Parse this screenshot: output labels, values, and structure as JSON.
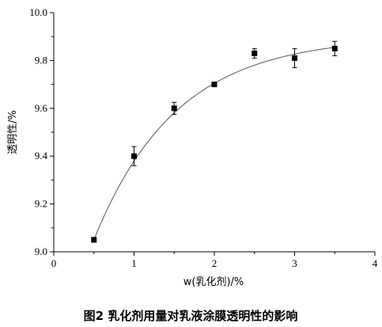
{
  "chart_data": {
    "type": "scatter",
    "caption": "图2   乳化剂用量对乳液涂膜透明性的影响",
    "xlabel": "w(乳化剂)/%",
    "ylabel": "透明性/%",
    "xlim": [
      0,
      4
    ],
    "ylim": [
      9.0,
      10.0
    ],
    "x_ticks": [
      "0",
      "1",
      "2",
      "3",
      "4"
    ],
    "y_ticks": [
      "9.0",
      "9.2",
      "9.4",
      "9.6",
      "9.8",
      "10.0"
    ],
    "grid": false,
    "legend": "none",
    "fit_curve": true,
    "points": [
      {
        "x": 0.5,
        "y": 9.05,
        "err": 0.01
      },
      {
        "x": 1.0,
        "y": 9.4,
        "err": 0.04
      },
      {
        "x": 1.5,
        "y": 9.6,
        "err": 0.025
      },
      {
        "x": 2.0,
        "y": 9.7,
        "err": 0.005
      },
      {
        "x": 2.5,
        "y": 9.83,
        "err": 0.02
      },
      {
        "x": 3.0,
        "y": 9.81,
        "err": 0.04
      },
      {
        "x": 3.5,
        "y": 9.85,
        "err": 0.03
      }
    ],
    "colors": {
      "marker": "#000000",
      "curve": "#555555",
      "axis": "#000000"
    }
  }
}
